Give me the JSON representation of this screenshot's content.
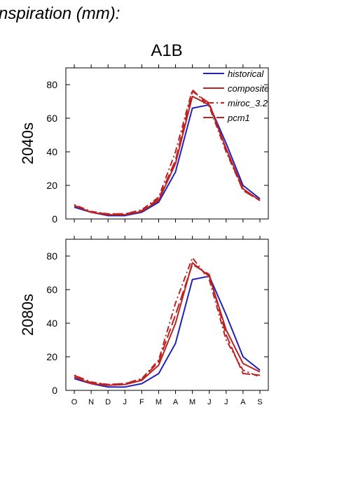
{
  "figure_title": "nspiration (mm):",
  "scenario_title": "A1B",
  "series_styles": {
    "historical": {
      "color": "#2222bb",
      "dash": ""
    },
    "composite": {
      "color": "#bb2222",
      "dash": ""
    },
    "miroc_3.2": {
      "color": "#bb2222",
      "dash": "2 4 9 4"
    },
    "pcm1": {
      "color": "#bb2222",
      "dash": "14 5"
    }
  },
  "chart_data": [
    {
      "type": "line",
      "row_label": "2040s",
      "x": [
        "O",
        "N",
        "D",
        "J",
        "F",
        "M",
        "A",
        "M",
        "J",
        "J",
        "A",
        "S"
      ],
      "ylim": [
        0,
        90
      ],
      "yticks": [
        0,
        20,
        40,
        60,
        80
      ],
      "legend_position": "top-right",
      "series": [
        {
          "name": "historical",
          "values": [
            7,
            4,
            2,
            2,
            4,
            10,
            28,
            66,
            68,
            45,
            20,
            12
          ]
        },
        {
          "name": "composite",
          "values": [
            8,
            4,
            2.5,
            2.5,
            4.5,
            11,
            33,
            73,
            68,
            42,
            18,
            11
          ]
        },
        {
          "name": "miroc_3.2",
          "values": [
            8.5,
            4.5,
            3,
            3,
            5.5,
            13,
            40,
            77,
            67,
            40,
            17,
            11
          ]
        },
        {
          "name": "pcm1",
          "values": [
            8,
            4,
            3,
            3,
            5,
            12,
            35,
            76,
            69,
            41,
            17,
            11
          ]
        }
      ]
    },
    {
      "type": "line",
      "row_label": "2080s",
      "x": [
        "O",
        "N",
        "D",
        "J",
        "F",
        "M",
        "A",
        "M",
        "J",
        "J",
        "A",
        "S"
      ],
      "ylim": [
        0,
        90
      ],
      "yticks": [
        0,
        20,
        40,
        60,
        80
      ],
      "series": [
        {
          "name": "historical",
          "values": [
            7,
            4,
            2,
            2,
            4,
            10,
            28,
            66,
            68,
            45,
            20,
            12
          ]
        },
        {
          "name": "composite",
          "values": [
            8,
            4,
            3,
            3.5,
            6,
            15,
            40,
            76,
            68,
            36,
            16,
            11
          ]
        },
        {
          "name": "miroc_3.2",
          "values": [
            9,
            5,
            3.5,
            4,
            7,
            18,
            52,
            79,
            66,
            30,
            12,
            8
          ]
        },
        {
          "name": "pcm1",
          "values": [
            9,
            4.5,
            3.5,
            4,
            6.5,
            17,
            45,
            75,
            69,
            33,
            10,
            9
          ]
        }
      ]
    }
  ]
}
